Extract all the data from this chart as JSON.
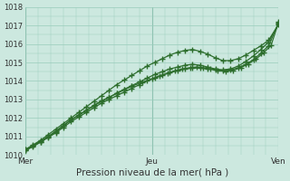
{
  "bg_color": "#cce8df",
  "plot_bg_color": "#cce8df",
  "grid_color": "#99ccbb",
  "line_color": "#2d6e2d",
  "marker_color": "#2d6e2d",
  "xlabel": "Pression niveau de la mer( hPa )",
  "ylim": [
    1010,
    1018
  ],
  "yticks": [
    1010,
    1011,
    1012,
    1013,
    1014,
    1015,
    1016,
    1017,
    1018
  ],
  "xtick_labels": [
    "Mer",
    "Jeu",
    "Ven"
  ],
  "xtick_positions": [
    0,
    0.5,
    1.0
  ],
  "series": [
    {
      "x": [
        0.0,
        0.03,
        0.06,
        0.09,
        0.12,
        0.15,
        0.18,
        0.21,
        0.24,
        0.27,
        0.3,
        0.33,
        0.36,
        0.39,
        0.42,
        0.45,
        0.48,
        0.51,
        0.54,
        0.57,
        0.6,
        0.63,
        0.66,
        0.69,
        0.72,
        0.75,
        0.78,
        0.81,
        0.84,
        0.87,
        0.9,
        0.93,
        0.96,
        1.0
      ],
      "y": [
        1010.3,
        1010.55,
        1010.8,
        1011.1,
        1011.4,
        1011.7,
        1012.0,
        1012.3,
        1012.6,
        1012.9,
        1013.2,
        1013.5,
        1013.8,
        1014.05,
        1014.3,
        1014.55,
        1014.8,
        1015.0,
        1015.2,
        1015.4,
        1015.55,
        1015.65,
        1015.7,
        1015.6,
        1015.45,
        1015.25,
        1015.1,
        1015.1,
        1015.2,
        1015.4,
        1015.65,
        1015.9,
        1016.2,
        1017.05
      ]
    },
    {
      "x": [
        0.0,
        0.03,
        0.06,
        0.09,
        0.12,
        0.15,
        0.18,
        0.21,
        0.24,
        0.27,
        0.3,
        0.33,
        0.36,
        0.39,
        0.42,
        0.45,
        0.48,
        0.51,
        0.54,
        0.57,
        0.6,
        0.63,
        0.66,
        0.69,
        0.72,
        0.75,
        0.78,
        0.81,
        0.84,
        0.87,
        0.9,
        0.93,
        0.96,
        1.0
      ],
      "y": [
        1010.3,
        1010.5,
        1010.75,
        1011.0,
        1011.3,
        1011.6,
        1011.9,
        1012.15,
        1012.4,
        1012.65,
        1012.9,
        1013.1,
        1013.35,
        1013.55,
        1013.75,
        1013.95,
        1014.15,
        1014.35,
        1014.5,
        1014.65,
        1014.75,
        1014.85,
        1014.9,
        1014.85,
        1014.75,
        1014.65,
        1014.6,
        1014.65,
        1014.8,
        1015.05,
        1015.35,
        1015.7,
        1016.1,
        1017.1
      ]
    },
    {
      "x": [
        0.0,
        0.03,
        0.06,
        0.09,
        0.12,
        0.15,
        0.18,
        0.21,
        0.24,
        0.27,
        0.3,
        0.33,
        0.36,
        0.39,
        0.42,
        0.45,
        0.48,
        0.51,
        0.54,
        0.57,
        0.6,
        0.63,
        0.66,
        0.69,
        0.72,
        0.75,
        0.78,
        0.81,
        0.84,
        0.87,
        0.9,
        0.93,
        0.96,
        1.0
      ],
      "y": [
        1010.25,
        1010.45,
        1010.7,
        1010.95,
        1011.2,
        1011.5,
        1011.8,
        1012.05,
        1012.3,
        1012.55,
        1012.8,
        1013.0,
        1013.2,
        1013.4,
        1013.6,
        1013.8,
        1014.0,
        1014.15,
        1014.3,
        1014.45,
        1014.55,
        1014.65,
        1014.7,
        1014.7,
        1014.65,
        1014.6,
        1014.55,
        1014.6,
        1014.7,
        1014.9,
        1015.15,
        1015.5,
        1015.9,
        1017.15
      ]
    },
    {
      "x": [
        0.0,
        0.03,
        0.06,
        0.09,
        0.12,
        0.15,
        0.18,
        0.21,
        0.24,
        0.27,
        0.3,
        0.33,
        0.36,
        0.39,
        0.42,
        0.46,
        0.5,
        0.53,
        0.56,
        0.59,
        0.62,
        0.65,
        0.675,
        0.7,
        0.73,
        0.76,
        0.79,
        0.82,
        0.85,
        0.88,
        0.91,
        0.94,
        0.97,
        1.0
      ],
      "y": [
        1010.25,
        1010.48,
        1010.72,
        1010.97,
        1011.25,
        1011.58,
        1011.9,
        1012.15,
        1012.42,
        1012.68,
        1012.93,
        1013.12,
        1013.32,
        1013.52,
        1013.72,
        1013.92,
        1014.12,
        1014.28,
        1014.42,
        1014.55,
        1014.65,
        1014.72,
        1014.75,
        1014.72,
        1014.65,
        1014.58,
        1014.52,
        1014.58,
        1014.72,
        1014.92,
        1015.18,
        1015.52,
        1015.92,
        1017.18
      ]
    }
  ]
}
